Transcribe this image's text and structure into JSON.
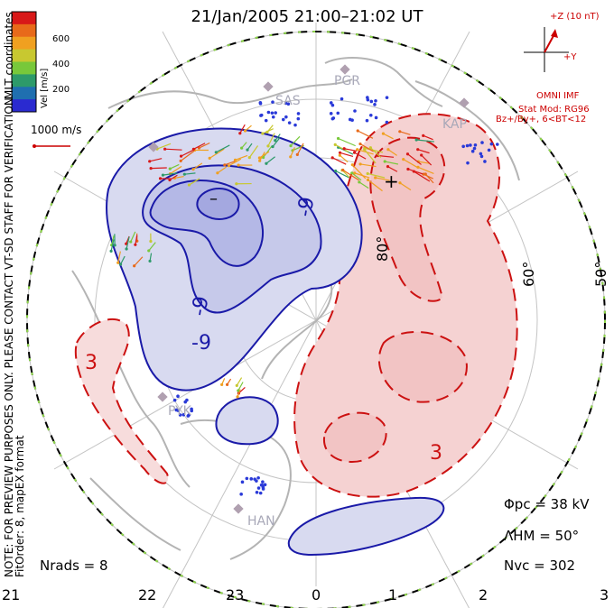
{
  "title": "21/Jan/2005 21:00–21:02 UT",
  "side_notes": {
    "mlt_coordinates": "MLT coordinates",
    "preview": "NOTE: FOR PREVIEW PURPOSES ONLY. PLEASE CONTACT VT-SD STAFF FOR VERIFICATION.",
    "fit_order": "FitOrder: 8, mapEX format"
  },
  "colorbar": {
    "label": "Vel [m/s]",
    "ticks": [
      "600",
      "400",
      "200"
    ],
    "colors": [
      "#2a2ad0",
      "#1f6fb0",
      "#2d9a6a",
      "#78c83a",
      "#c8c830",
      "#f0a020",
      "#e86a1a",
      "#d81818"
    ]
  },
  "reference_vector": "1000 m/s",
  "imf_panel": {
    "bz_label": "+Z (10 nT)",
    "by_label": "+Y",
    "source": "OMNI IMF",
    "stat_model": "Stat Mod: RG96",
    "condition": "Bz+/By+, 6<BT<12"
  },
  "latitude_labels": [
    "80°",
    "60°",
    "50°"
  ],
  "contour_labels": [
    "-9",
    "-9",
    "-9",
    "3",
    "3",
    "-",
    "+"
  ],
  "station_labels": [
    "PGR",
    "KAP",
    "SAS",
    "PYK",
    "HAN"
  ],
  "stats": {
    "phi_pc": "Φpc = 38 kV",
    "lambda_hm": "ΛHM = 50°",
    "n_vc": "Nvc = 302",
    "n_rads": "Nrads = 8"
  },
  "mlt_ticks": [
    "21",
    "22",
    "23",
    "0",
    "1",
    "2",
    "3"
  ],
  "colors": {
    "negative_contour": "#1a1aa8",
    "positive_contour": "#cc1111",
    "negative_fill": "#c8cbe8",
    "positive_fill": "#f5cdcd",
    "coastline": "#b8b8b8",
    "grid": "#bfbfbf"
  }
}
